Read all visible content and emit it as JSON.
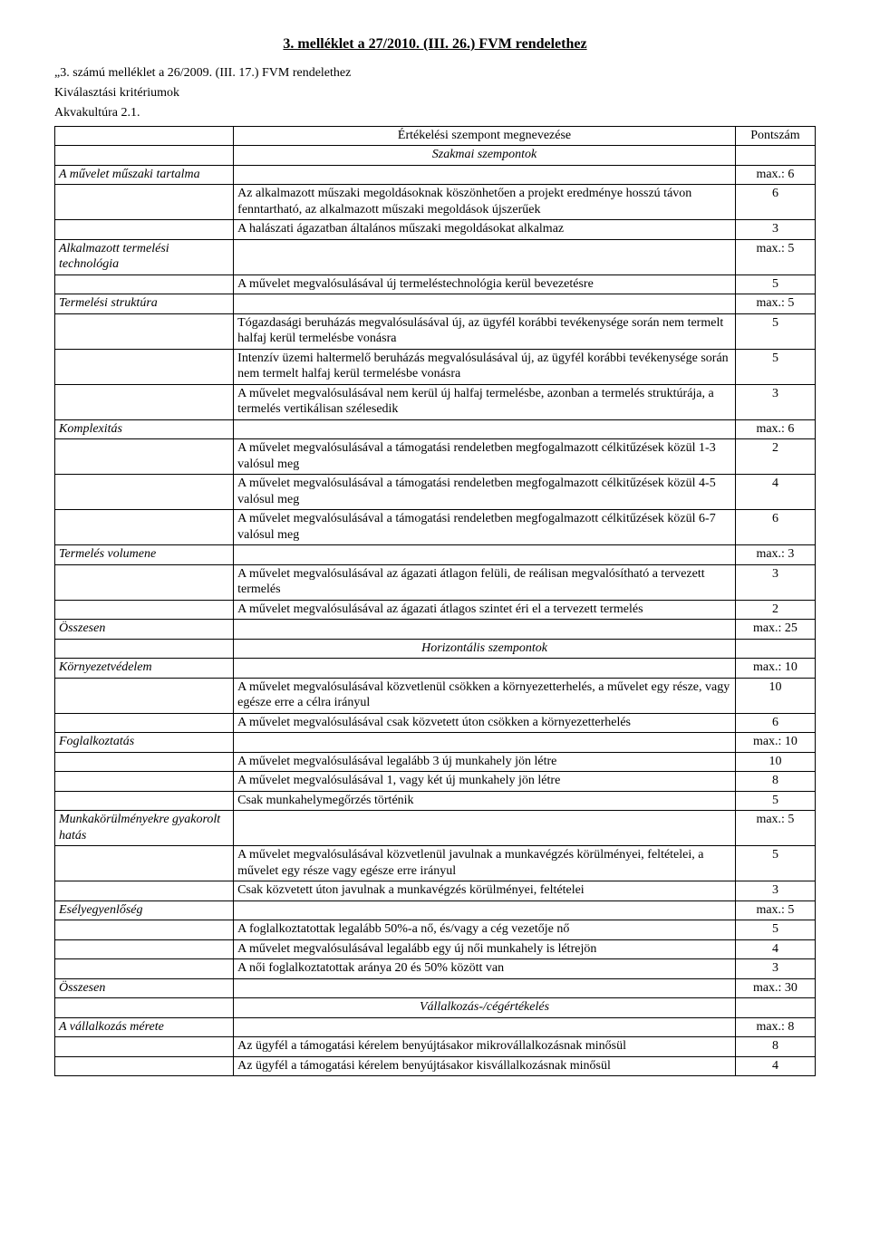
{
  "title": "3. melléklet a 27/2010. (III. 26.) FVM rendelethez",
  "preamble": [
    "„3. számú melléklet a 26/2009. (III. 17.) FVM rendelethez",
    "Kiválasztási kritériumok",
    "Akvakultúra 2.1."
  ],
  "header": {
    "col1": "",
    "col2": "Értékelési szempont megnevezése",
    "col3": "Pontszám"
  },
  "section1_label": "Szakmai szempontok",
  "r1": {
    "label": "A művelet műszaki tartalma",
    "score": "max.: 6"
  },
  "r2": {
    "text": "Az alkalmazott műszaki megoldásoknak köszönhetően a projekt eredménye hosszú távon fenntartható, az alkalmazott műszaki megoldások újszerűek",
    "score": "6"
  },
  "r3": {
    "text": "A halászati ágazatban általános műszaki megoldásokat alkalmaz",
    "score": "3"
  },
  "r4": {
    "label": "Alkalmazott termelési technológia",
    "score": "max.: 5"
  },
  "r5": {
    "text": "A művelet megvalósulásával új termeléstechnológia kerül bevezetésre",
    "score": "5"
  },
  "r6": {
    "label": "Termelési struktúra",
    "score": "max.: 5"
  },
  "r7": {
    "text": "Tógazdasági beruházás megvalósulásával új, az ügyfél korábbi tevékenysége során nem termelt halfaj kerül termelésbe vonásra",
    "score": "5"
  },
  "r8": {
    "text": "Intenzív üzemi haltermelő beruházás megvalósulásával új, az ügyfél korábbi tevékenysége során nem termelt halfaj kerül termelésbe vonásra",
    "score": "5"
  },
  "r9": {
    "text": "A művelet megvalósulásával nem kerül új halfaj termelésbe, azonban a termelés struktúrája, a termelés vertikálisan szélesedik",
    "score": "3"
  },
  "r10": {
    "label": "Komplexitás",
    "score": "max.: 6"
  },
  "r11": {
    "text": "A művelet megvalósulásával a támogatási rendeletben megfogalmazott célkitűzések közül 1-3 valósul meg",
    "score": "2"
  },
  "r12": {
    "text": "A művelet megvalósulásával a támogatási rendeletben megfogalmazott célkitűzések közül 4-5 valósul meg",
    "score": "4"
  },
  "r13": {
    "text": "A művelet megvalósulásával a támogatási rendeletben megfogalmazott célkitűzések közül 6-7 valósul meg",
    "score": "6"
  },
  "r14": {
    "label": "Termelés volumene",
    "score": "max.: 3"
  },
  "r15": {
    "text": "A művelet megvalósulásával az ágazati átlagon felüli, de reálisan megvalósítható a tervezett termelés",
    "score": "3"
  },
  "r16": {
    "text": "A művelet megvalósulásával az ágazati átlagos szintet éri el a tervezett termelés",
    "score": "2"
  },
  "r17": {
    "label": "Összesen",
    "score": "max.: 25"
  },
  "section2_label": "Horizontális szempontok",
  "r18": {
    "label": "Környezetvédelem",
    "score": "max.: 10"
  },
  "r19": {
    "text": "A művelet megvalósulásával közvetlenül csökken a környezetterhelés, a művelet egy része, vagy egésze erre a célra irányul",
    "score": "10"
  },
  "r20": {
    "text": "A művelet megvalósulásával csak közvetett úton csökken a környezetterhelés",
    "score": "6"
  },
  "r21": {
    "label": "Foglalkoztatás",
    "score": "max.: 10"
  },
  "r22": {
    "text": "A művelet megvalósulásával legalább 3 új munkahely jön létre",
    "score": "10"
  },
  "r23": {
    "text": "A művelet megvalósulásával 1, vagy két új munkahely jön létre",
    "score": "8"
  },
  "r24": {
    "text": "Csak munkahelymegőrzés történik",
    "score": "5"
  },
  "r25": {
    "label": "Munkakörülményekre gyakorolt hatás",
    "score": "max.: 5"
  },
  "r26": {
    "text": "A művelet megvalósulásával közvetlenül javulnak a munkavégzés körülményei, feltételei, a művelet egy része vagy egésze erre irányul",
    "score": "5"
  },
  "r27": {
    "text": "Csak közvetett úton javulnak a munkavégzés körülményei, feltételei",
    "score": "3"
  },
  "r28": {
    "label": "Esélyegyenlőség",
    "score": "max.: 5"
  },
  "r29": {
    "text": "A foglalkoztatottak legalább 50%-a nő, és/vagy a cég vezetője nő",
    "score": "5"
  },
  "r30": {
    "text": "A művelet megvalósulásával legalább egy új női munkahely is létrejön",
    "score": "4"
  },
  "r31": {
    "text": "A női foglalkoztatottak aránya 20 és 50% között van",
    "score": "3"
  },
  "r32": {
    "label": "Összesen",
    "score": "max.: 30"
  },
  "section3_label": "Vállalkozás-/cégértékelés",
  "r33": {
    "label": "A vállalkozás mérete",
    "score": "max.: 8"
  },
  "r34": {
    "text": "Az ügyfél a támogatási kérelem benyújtásakor mikrovállalkozásnak minősül",
    "score": "8"
  },
  "r35": {
    "text": "Az ügyfél a támogatási kérelem benyújtásakor kisvállalkozásnak minősül",
    "score": "4"
  }
}
